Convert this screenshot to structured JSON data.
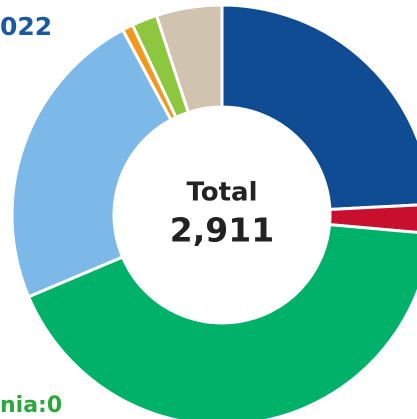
{
  "chart_data": {
    "type": "donut",
    "title": "022",
    "values": [
      704,
      65,
      1229,
      685,
      24,
      57,
      147
    ],
    "colors": [
      "#0f4c93",
      "#c8102e",
      "#00b16a",
      "#7cb9e8",
      "#f5961e",
      "#8dc63f",
      "#d0c3b0"
    ],
    "center_label": "Total",
    "total": {
      "value": 2911,
      "label": "2,911"
    },
    "annotation": "nia:0"
  }
}
